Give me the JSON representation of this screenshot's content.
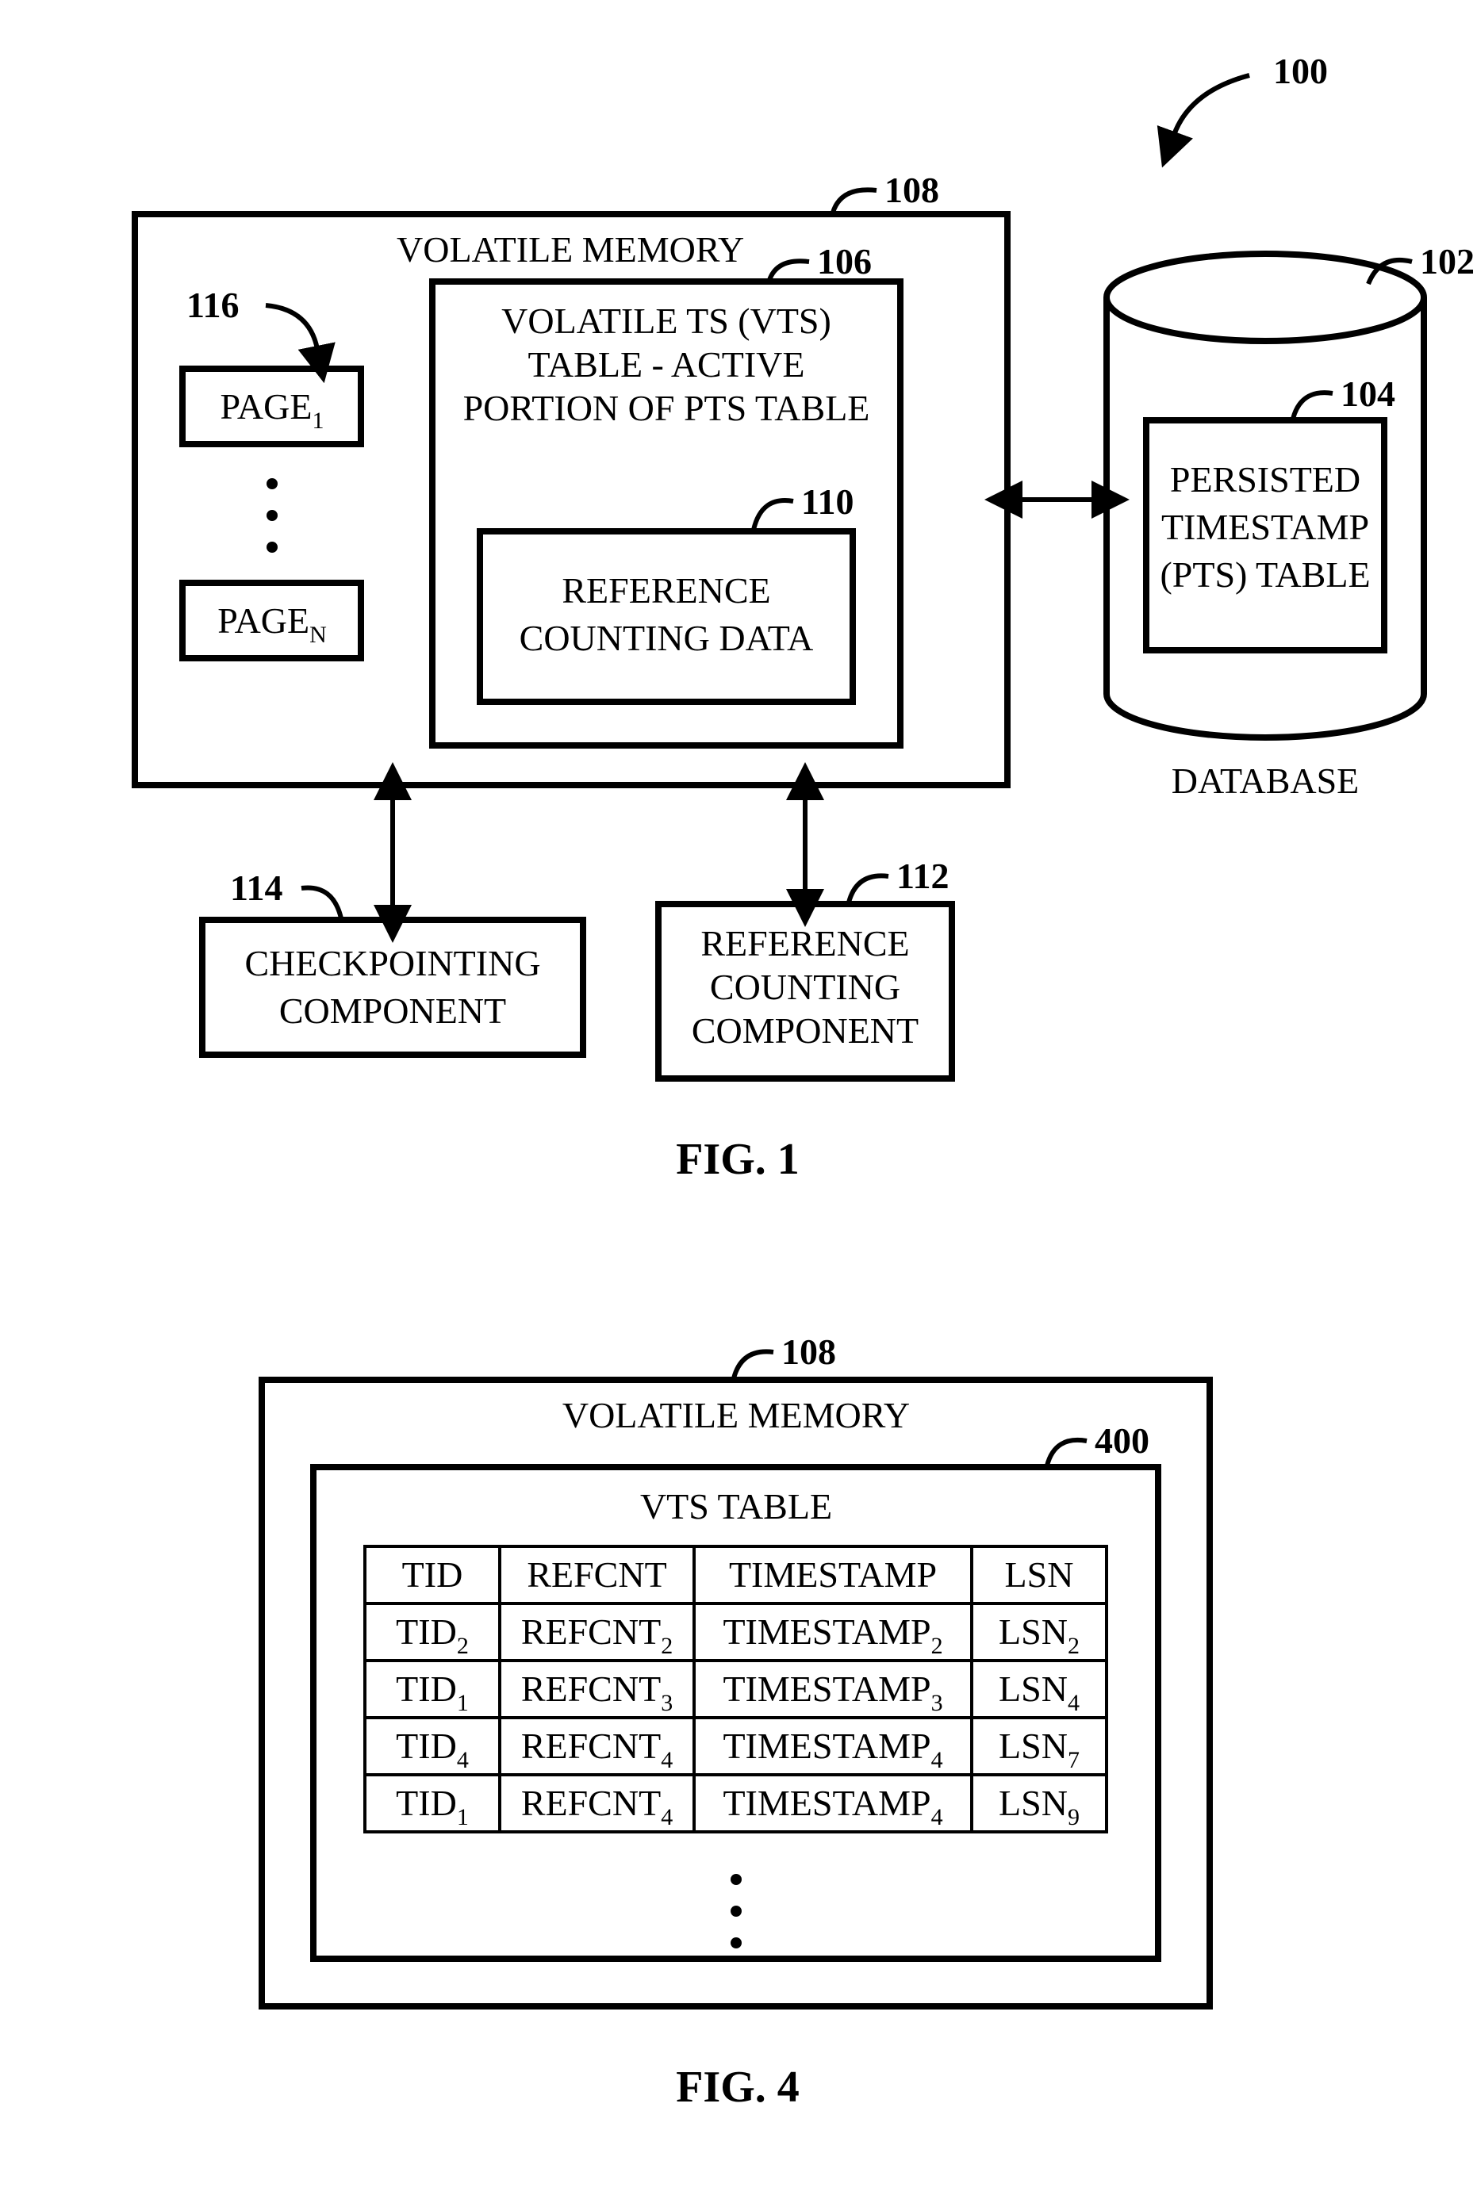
{
  "stroke_thick": 8,
  "stroke_thin": 4,
  "fig1": {
    "caption": "FIG. 1",
    "top_label": "100",
    "vm": {
      "label": "108",
      "title": "VOLATILE MEMORY"
    },
    "pages": {
      "label": "116",
      "page1": "PAGE",
      "page1_sub": "1",
      "pageN": "PAGE",
      "pageN_sub": "N"
    },
    "vts": {
      "label": "106",
      "line1": "VOLATILE TS (VTS)",
      "line2": "TABLE - ACTIVE",
      "line3": "PORTION OF PTS TABLE"
    },
    "refdata": {
      "label": "110",
      "line1": "REFERENCE",
      "line2": "COUNTING DATA"
    },
    "checkpoint": {
      "label": "114",
      "line1": "CHECKPOINTING",
      "line2": "COMPONENT"
    },
    "refcount": {
      "label": "112",
      "line1": "REFERENCE",
      "line2": "COUNTING",
      "line3": "COMPONENT"
    },
    "db": {
      "label": "102",
      "caption": "DATABASE"
    },
    "pts": {
      "label": "104",
      "line1": "PERSISTED",
      "line2": "TIMESTAMP",
      "line3": "(PTS) TABLE"
    }
  },
  "fig4": {
    "caption": "FIG. 4",
    "vm": {
      "label": "108",
      "title": "VOLATILE MEMORY"
    },
    "vts": {
      "label": "400",
      "title": "VTS TABLE"
    },
    "columns": [
      "TID",
      "REFCNT",
      "TIMESTAMP",
      "LSN"
    ],
    "rows": [
      {
        "tid": "TID",
        "tid_sub": "2",
        "ref": "REFCNT",
        "ref_sub": "2",
        "ts": "TIMESTAMP",
        "ts_sub": "2",
        "lsn": "LSN",
        "lsn_sub": "2"
      },
      {
        "tid": "TID",
        "tid_sub": "1",
        "ref": "REFCNT",
        "ref_sub": "3",
        "ts": "TIMESTAMP",
        "ts_sub": "3",
        "lsn": "LSN",
        "lsn_sub": "4"
      },
      {
        "tid": "TID",
        "tid_sub": "4",
        "ref": "REFCNT",
        "ref_sub": "4",
        "ts": "TIMESTAMP",
        "ts_sub": "4",
        "lsn": "LSN",
        "lsn_sub": "7"
      },
      {
        "tid": "TID",
        "tid_sub": "1",
        "ref": "REFCNT",
        "ref_sub": "4",
        "ts": "TIMESTAMP",
        "ts_sub": "4",
        "lsn": "LSN",
        "lsn_sub": "9"
      }
    ]
  }
}
